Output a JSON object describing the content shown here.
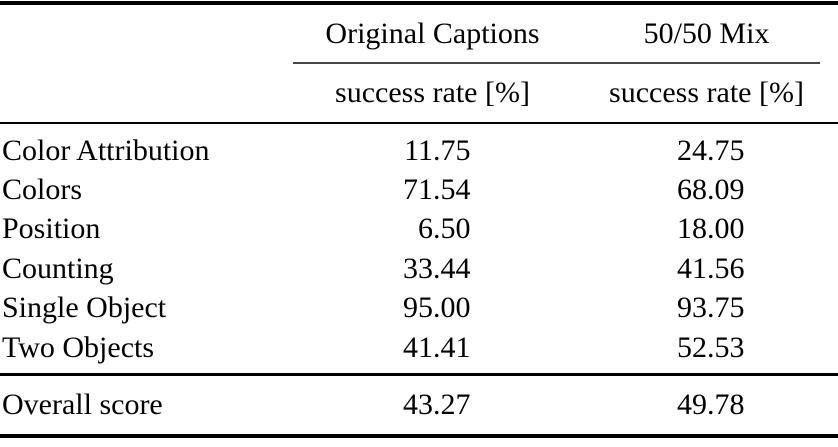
{
  "table": {
    "col_groups": [
      {
        "label": "Original Captions"
      },
      {
        "label": "50/50 Mix"
      }
    ],
    "sub_header": "success rate [%]",
    "rows": [
      {
        "label": "Color Attribution",
        "values": [
          "11.75",
          "24.75"
        ]
      },
      {
        "label": "Colors",
        "values": [
          "71.54",
          "68.09"
        ]
      },
      {
        "label": "Position",
        "values": [
          "6.50",
          "18.00"
        ]
      },
      {
        "label": "Counting",
        "values": [
          "33.44",
          "41.56"
        ]
      },
      {
        "label": "Single Object",
        "values": [
          "95.00",
          "93.75"
        ]
      },
      {
        "label": "Two Objects",
        "values": [
          "41.41",
          "52.53"
        ]
      }
    ],
    "footer_row": {
      "label": "Overall score",
      "values": [
        "43.27",
        "49.78"
      ]
    }
  },
  "colors": {
    "text": "#000000",
    "heavy_rule": "#000000",
    "mid_rule": "#000000",
    "cmid_rule": "#454545",
    "background": "#ffffff"
  }
}
